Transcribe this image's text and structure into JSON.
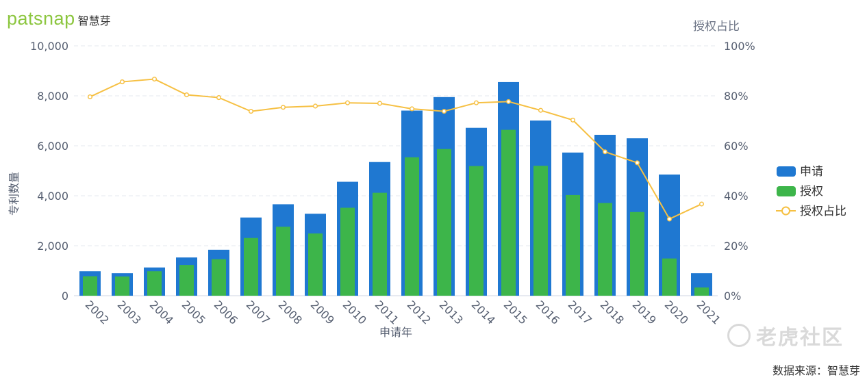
{
  "brand": {
    "logo_word": "patsnap",
    "logo_cn": "智慧芽"
  },
  "source_note": "数据来源：智慧芽",
  "watermark": {
    "text": "老虎社区"
  },
  "colors": {
    "applications": "#1f78d1",
    "grants": "#3db54a",
    "ratio": "#f6c043",
    "axis_text": "#555e70"
  },
  "chart_data": {
    "type": "bar",
    "xlabel": "申请年",
    "ylabel": "专利数量",
    "y2label": "授权占比",
    "categories": [
      "2002",
      "2003",
      "2004",
      "2005",
      "2006",
      "2007",
      "2008",
      "2009",
      "2010",
      "2011",
      "2012",
      "2013",
      "2014",
      "2015",
      "2016",
      "2017",
      "2018",
      "2019",
      "2020",
      "2021"
    ],
    "ylim": [
      0,
      10000
    ],
    "yticks": [
      "0",
      "2,000",
      "4,000",
      "6,000",
      "8,000",
      "10,000"
    ],
    "y2lim": [
      0,
      100
    ],
    "y2ticks": [
      "0%",
      "20%",
      "40%",
      "60%",
      "80%",
      "100%"
    ],
    "grid": true,
    "legend_position": "right",
    "series": [
      {
        "name": "申请",
        "type": "bar",
        "values": [
          980,
          900,
          1130,
          1530,
          1840,
          3130,
          3660,
          3280,
          4560,
          5350,
          7410,
          7950,
          6720,
          8550,
          7010,
          5730,
          6440,
          6300,
          4850,
          900
        ]
      },
      {
        "name": "授权",
        "type": "bar",
        "values": [
          780,
          770,
          980,
          1230,
          1460,
          2310,
          2760,
          2490,
          3520,
          4120,
          5540,
          5870,
          5190,
          6640,
          5200,
          4030,
          3710,
          3350,
          1490,
          330
        ]
      },
      {
        "name": "授权占比",
        "type": "line",
        "axis": "right",
        "values": [
          79.6,
          85.6,
          86.7,
          80.4,
          79.3,
          73.8,
          75.4,
          75.9,
          77.2,
          77.0,
          74.8,
          73.8,
          77.2,
          77.7,
          74.2,
          70.3,
          57.6,
          53.2,
          30.7,
          36.7
        ]
      }
    ]
  }
}
